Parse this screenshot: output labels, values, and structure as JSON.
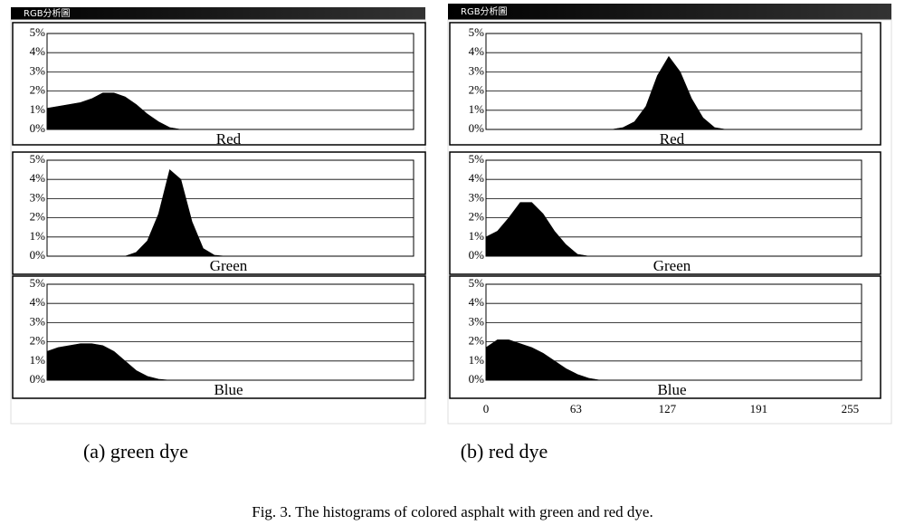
{
  "figure": {
    "windows": [
      {
        "title": "RGB分析圖",
        "subcaption": "(a) green dye"
      },
      {
        "title": "RGB分析圖",
        "subcaption": "(b) red dye"
      }
    ],
    "caption": "Fig. 3. The histograms of colored asphalt with green and red dye."
  },
  "chart_data": [
    {
      "type": "area",
      "xlabel": "Red",
      "color": "#000000",
      "grid": true,
      "xlim": [
        0,
        263
      ],
      "ylim": [
        0,
        5
      ],
      "yticks": [
        {
          "value": 0,
          "label": "0%"
        },
        {
          "value": 1,
          "label": "1%"
        },
        {
          "value": 2,
          "label": "2%"
        },
        {
          "value": 3,
          "label": "3%"
        },
        {
          "value": 4,
          "label": "4%"
        },
        {
          "value": 5,
          "label": "5%"
        }
      ],
      "x": [
        0,
        8,
        16,
        24,
        32,
        40,
        48,
        56,
        64,
        72,
        80,
        88,
        96,
        104,
        112,
        120,
        128,
        136,
        144,
        152,
        160,
        168,
        176,
        184,
        192,
        200,
        208,
        216,
        224,
        232,
        240,
        248
      ],
      "values": [
        1.1,
        1.2,
        1.3,
        1.4,
        1.6,
        1.9,
        1.9,
        1.7,
        1.3,
        0.8,
        0.4,
        0.1,
        0,
        0,
        0,
        0,
        0,
        0,
        0,
        0,
        0,
        0,
        0,
        0,
        0,
        0,
        0,
        0,
        0,
        0,
        0,
        0
      ]
    },
    {
      "type": "area",
      "xlabel": "Green",
      "color": "#000000",
      "grid": true,
      "xlim": [
        0,
        263
      ],
      "ylim": [
        0,
        5
      ],
      "yticks": [
        {
          "value": 0,
          "label": "0%"
        },
        {
          "value": 1,
          "label": "1%"
        },
        {
          "value": 2,
          "label": "2%"
        },
        {
          "value": 3,
          "label": "3%"
        },
        {
          "value": 4,
          "label": "4%"
        },
        {
          "value": 5,
          "label": "5%"
        }
      ],
      "x": [
        0,
        8,
        16,
        24,
        32,
        40,
        48,
        56,
        64,
        72,
        80,
        88,
        96,
        104,
        112,
        120,
        128,
        136,
        144,
        152,
        160,
        168,
        176,
        184,
        192,
        200,
        208,
        216,
        224,
        232,
        240,
        248
      ],
      "values": [
        0,
        0,
        0,
        0,
        0,
        0,
        0,
        0,
        0.2,
        0.8,
        2.2,
        4.5,
        4.0,
        1.8,
        0.4,
        0.05,
        0,
        0,
        0,
        0,
        0,
        0,
        0,
        0,
        0,
        0,
        0,
        0,
        0,
        0,
        0,
        0
      ]
    },
    {
      "type": "area",
      "xlabel": "Blue",
      "color": "#000000",
      "grid": true,
      "xlim": [
        0,
        263
      ],
      "ylim": [
        0,
        5
      ],
      "yticks": [
        {
          "value": 0,
          "label": "0%"
        },
        {
          "value": 1,
          "label": "1%"
        },
        {
          "value": 2,
          "label": "2%"
        },
        {
          "value": 3,
          "label": "3%"
        },
        {
          "value": 4,
          "label": "4%"
        },
        {
          "value": 5,
          "label": "5%"
        }
      ],
      "x": [
        0,
        8,
        16,
        24,
        32,
        40,
        48,
        56,
        64,
        72,
        80,
        88,
        96,
        104,
        112,
        120,
        128,
        136,
        144,
        152,
        160,
        168,
        176,
        184,
        192,
        200,
        208,
        216,
        224,
        232,
        240,
        248
      ],
      "values": [
        1.5,
        1.7,
        1.8,
        1.9,
        1.9,
        1.8,
        1.5,
        1.0,
        0.5,
        0.2,
        0.05,
        0,
        0,
        0,
        0,
        0,
        0,
        0,
        0,
        0,
        0,
        0,
        0,
        0,
        0,
        0,
        0,
        0,
        0,
        0,
        0,
        0
      ]
    },
    {
      "type": "area",
      "xlabel": "Red",
      "color": "#000000",
      "grid": true,
      "xlim": [
        0,
        263
      ],
      "ylim": [
        0,
        5
      ],
      "yticks": [
        {
          "value": 0,
          "label": "0%"
        },
        {
          "value": 1,
          "label": "1%"
        },
        {
          "value": 2,
          "label": "2%"
        },
        {
          "value": 3,
          "label": "3%"
        },
        {
          "value": 4,
          "label": "4%"
        },
        {
          "value": 5,
          "label": "5%"
        }
      ],
      "x": [
        0,
        8,
        16,
        24,
        32,
        40,
        48,
        56,
        64,
        72,
        80,
        88,
        96,
        104,
        112,
        120,
        128,
        136,
        144,
        152,
        160,
        168,
        176,
        184,
        192,
        200,
        208,
        216,
        224,
        232,
        240,
        248
      ],
      "values": [
        0,
        0,
        0,
        0,
        0,
        0,
        0,
        0,
        0,
        0,
        0,
        0,
        0.1,
        0.4,
        1.2,
        2.8,
        3.8,
        3.0,
        1.6,
        0.6,
        0.1,
        0,
        0,
        0,
        0,
        0,
        0,
        0,
        0,
        0,
        0,
        0
      ]
    },
    {
      "type": "area",
      "xlabel": "Green",
      "color": "#000000",
      "grid": true,
      "xlim": [
        0,
        263
      ],
      "ylim": [
        0,
        5
      ],
      "yticks": [
        {
          "value": 0,
          "label": "0%"
        },
        {
          "value": 1,
          "label": "1%"
        },
        {
          "value": 2,
          "label": "2%"
        },
        {
          "value": 3,
          "label": "3%"
        },
        {
          "value": 4,
          "label": "4%"
        },
        {
          "value": 5,
          "label": "5%"
        }
      ],
      "x": [
        0,
        8,
        16,
        24,
        32,
        40,
        48,
        56,
        64,
        72,
        80,
        88,
        96,
        104,
        112,
        120,
        128,
        136,
        144,
        152,
        160,
        168,
        176,
        184,
        192,
        200,
        208,
        216,
        224,
        232,
        240,
        248
      ],
      "values": [
        1.0,
        1.3,
        2.0,
        2.8,
        2.8,
        2.2,
        1.3,
        0.6,
        0.1,
        0,
        0,
        0,
        0,
        0,
        0,
        0,
        0,
        0,
        0,
        0,
        0,
        0,
        0,
        0,
        0,
        0,
        0,
        0,
        0,
        0,
        0,
        0
      ]
    },
    {
      "type": "area",
      "xlabel": "Blue",
      "color": "#000000",
      "grid": true,
      "xlim": [
        0,
        263
      ],
      "ylim": [
        0,
        5
      ],
      "yticks": [
        {
          "value": 0,
          "label": "0%"
        },
        {
          "value": 1,
          "label": "1%"
        },
        {
          "value": 2,
          "label": "2%"
        },
        {
          "value": 3,
          "label": "3%"
        },
        {
          "value": 4,
          "label": "4%"
        },
        {
          "value": 5,
          "label": "5%"
        }
      ],
      "xticks": [
        0,
        63,
        127,
        191,
        255
      ],
      "x": [
        0,
        8,
        16,
        24,
        32,
        40,
        48,
        56,
        64,
        72,
        80,
        88,
        96,
        104,
        112,
        120,
        128,
        136,
        144,
        152,
        160,
        168,
        176,
        184,
        192,
        200,
        208,
        216,
        224,
        232,
        240,
        248
      ],
      "values": [
        1.7,
        2.1,
        2.1,
        1.9,
        1.7,
        1.4,
        1.0,
        0.6,
        0.3,
        0.1,
        0,
        0,
        0,
        0,
        0,
        0,
        0,
        0,
        0,
        0,
        0,
        0,
        0,
        0,
        0,
        0,
        0,
        0,
        0,
        0,
        0,
        0
      ]
    }
  ]
}
